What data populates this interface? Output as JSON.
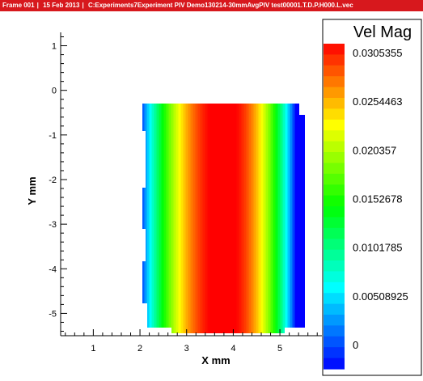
{
  "header": {
    "frame": "Frame 001",
    "date": "15 Feb 2013",
    "file": "C:Experiments7Experiment PIV Demo130214-30mmAvgPIV test00001.T.D.P.H000.L.vec"
  },
  "chart_data": {
    "type": "heatmap",
    "title": "",
    "xlabel": "X mm",
    "ylabel": "Y mm",
    "x_ticks": [
      1,
      2,
      3,
      4,
      5
    ],
    "y_ticks": [
      1,
      0,
      -1,
      -2,
      -3,
      -4,
      -5
    ],
    "xlim": [
      0.3,
      5.9
    ],
    "ylim": [
      -5.5,
      1.3
    ],
    "field_extent": {
      "x": [
        1.8,
        5.5
      ],
      "y": [
        -5.3,
        -0.05
      ]
    },
    "peak_x": 3.8,
    "legend": {
      "title": "Vel Mag",
      "values": [
        "0.0305355",
        "0.0254463",
        "0.020357",
        "0.0152678",
        "0.0101785",
        "0.00508925",
        "0"
      ],
      "min": 0,
      "max": 0.0305355
    },
    "colormap": [
      "#0000ff",
      "#0080ff",
      "#00ffff",
      "#00ff80",
      "#00ff00",
      "#80ff00",
      "#ffff00",
      "#ff8000",
      "#ff0000"
    ],
    "grid": false
  }
}
